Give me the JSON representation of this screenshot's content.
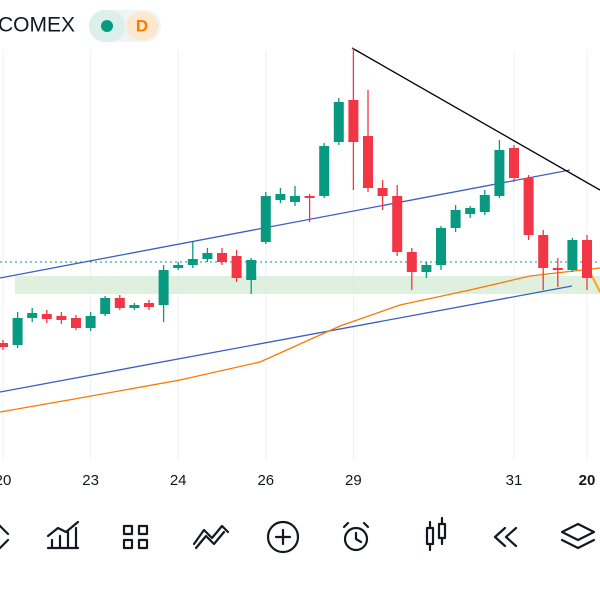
{
  "chart_data": {
    "type": "candlestick",
    "title": "COMEX",
    "badge": "D",
    "categories": [
      "20",
      null,
      null,
      null,
      null,
      null,
      "23",
      null,
      null,
      null,
      null,
      null,
      "24",
      null,
      null,
      null,
      null,
      null,
      "26",
      null,
      null,
      null,
      null,
      null,
      "29",
      null,
      null,
      null,
      null,
      null,
      null,
      null,
      null,
      null,
      null,
      "31",
      null,
      null,
      null,
      null,
      "20"
    ],
    "open": [
      117,
      115,
      142,
      146,
      144,
      142,
      132,
      146,
      162,
      152,
      157,
      155,
      192,
      195,
      201,
      207,
      204,
      180,
      218,
      260,
      258,
      264,
      264,
      318,
      360,
      324,
      272,
      264,
      208,
      188,
      195,
      232,
      246,
      248,
      264,
      312,
      282,
      225,
      192,
      190,
      220
    ],
    "high": [
      120,
      148,
      152,
      150,
      148,
      145,
      148,
      164,
      165,
      157,
      160,
      195,
      198,
      218,
      212,
      212,
      210,
      202,
      268,
      272,
      274,
      266,
      317,
      362,
      412,
      370,
      280,
      275,
      212,
      198,
      234,
      255,
      254,
      270,
      320,
      315,
      285,
      230,
      202,
      222,
      225
    ],
    "low": [
      110,
      112,
      138,
      137,
      136,
      130,
      129,
      144,
      150,
      150,
      150,
      138,
      190,
      192,
      198,
      195,
      178,
      166,
      216,
      257,
      254,
      238,
      262,
      315,
      270,
      268,
      250,
      204,
      170,
      182,
      190,
      228,
      242,
      245,
      262,
      278,
      220,
      170,
      173,
      188,
      170
    ],
    "close": [
      113,
      142,
      147,
      141,
      140,
      132,
      144,
      162,
      152,
      155,
      153,
      190,
      195,
      201,
      207,
      198,
      182,
      200,
      264,
      266,
      264,
      262,
      314,
      358,
      318,
      272,
      264,
      208,
      188,
      195,
      232,
      250,
      252,
      265,
      310,
      282,
      225,
      192,
      190,
      220,
      182
    ],
    "up_color": "#089981",
    "down_color": "#f23645",
    "ylim": [
      0,
      460
    ]
  }
}
